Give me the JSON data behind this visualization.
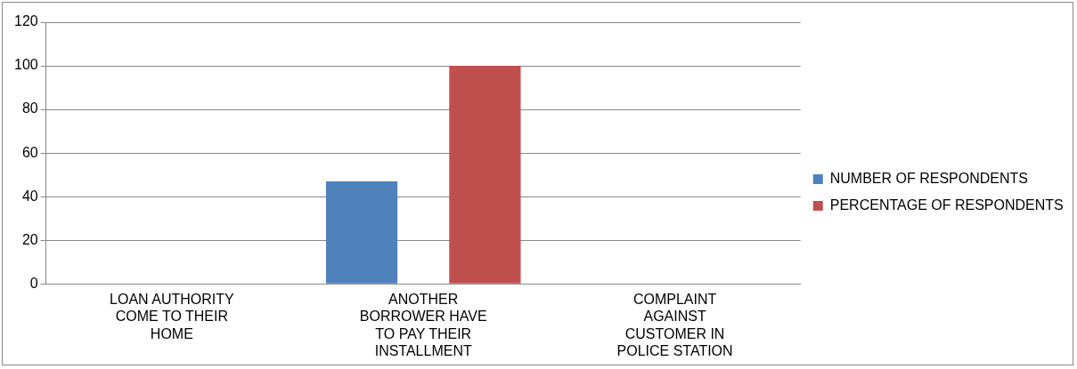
{
  "chart_data": {
    "type": "bar",
    "categories": [
      "LOAN AUTHORITY COME TO THEIR HOME",
      "ANOTHER BORROWER HAVE TO PAY THEIR INSTALLMENT",
      "COMPLAINT AGAINST CUSTOMER IN POLICE STATION"
    ],
    "series": [
      {
        "name": "NUMBER OF RESPONDENTS",
        "color": "#4f81bd",
        "values": [
          0,
          47,
          0
        ]
      },
      {
        "name": "PERCENTAGE OF RESPONDENTS",
        "color": "#c0504d",
        "values": [
          0,
          100,
          0
        ]
      }
    ],
    "ylim": [
      0,
      120
    ],
    "yticks": [
      0,
      20,
      40,
      60,
      80,
      100,
      120
    ],
    "grid": "y",
    "legend": "right"
  }
}
